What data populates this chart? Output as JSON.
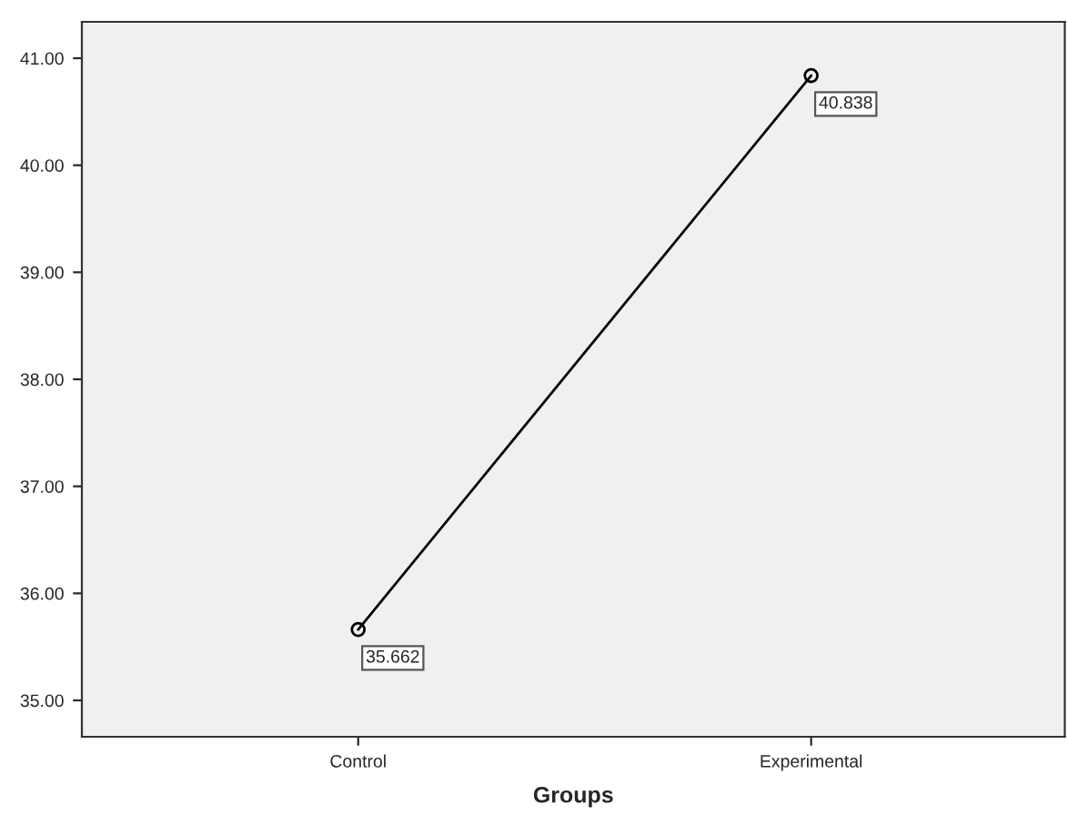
{
  "chart_data": {
    "type": "line",
    "xlabel": "Groups",
    "categories": [
      "Control",
      "Experimental"
    ],
    "series": [
      {
        "color": "#000000",
        "values": [
          35.662,
          40.838
        ]
      }
    ],
    "data_labels": true,
    "marker": "circle",
    "line_style": "solid",
    "grid": false,
    "ylim": [
      34.66,
      41.34
    ],
    "yticks": [
      {
        "value": 35,
        "label": "35.00"
      },
      {
        "value": 36,
        "label": "36.00"
      },
      {
        "value": 37,
        "label": "37.00"
      },
      {
        "value": 38,
        "label": "38.00"
      },
      {
        "value": 39,
        "label": "39.00"
      },
      {
        "value": 40,
        "label": "40.00"
      },
      {
        "value": 41,
        "label": "41.00"
      }
    ]
  }
}
